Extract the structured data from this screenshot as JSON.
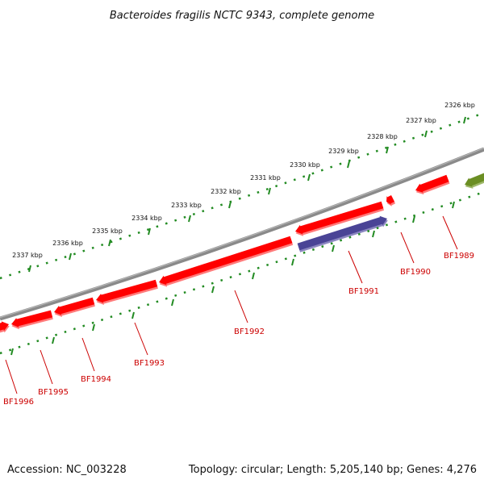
{
  "title": "Bacteroides fragilis NCTC 9343, complete genome",
  "accession_text": "Accession: NC_003228",
  "summary_text": "Topology: circular; Length: 5,205,140 bp; Genes: 4,276",
  "scale_labels": [
    "2326 kbp",
    "2327 kbp",
    "2328 kbp",
    "2329 kbp",
    "2330 kbp",
    "2331 kbp",
    "2332 kbp",
    "2333 kbp",
    "2334 kbp",
    "2335 kbp",
    "2336 kbp",
    "2337 kbp"
  ],
  "gene_labels": [
    "BF1989",
    "BF1990",
    "BF1991",
    "BF1992",
    "BF1993",
    "BF1994",
    "BF1995",
    "BF1996"
  ],
  "colors": {
    "backbone": "#808080",
    "gene_red": "#ff0000",
    "gene_blue": "#4a4496",
    "gene_olive": "#6b8e23",
    "scale_ticks": "#228b22",
    "label_red": "#cc0000"
  }
}
